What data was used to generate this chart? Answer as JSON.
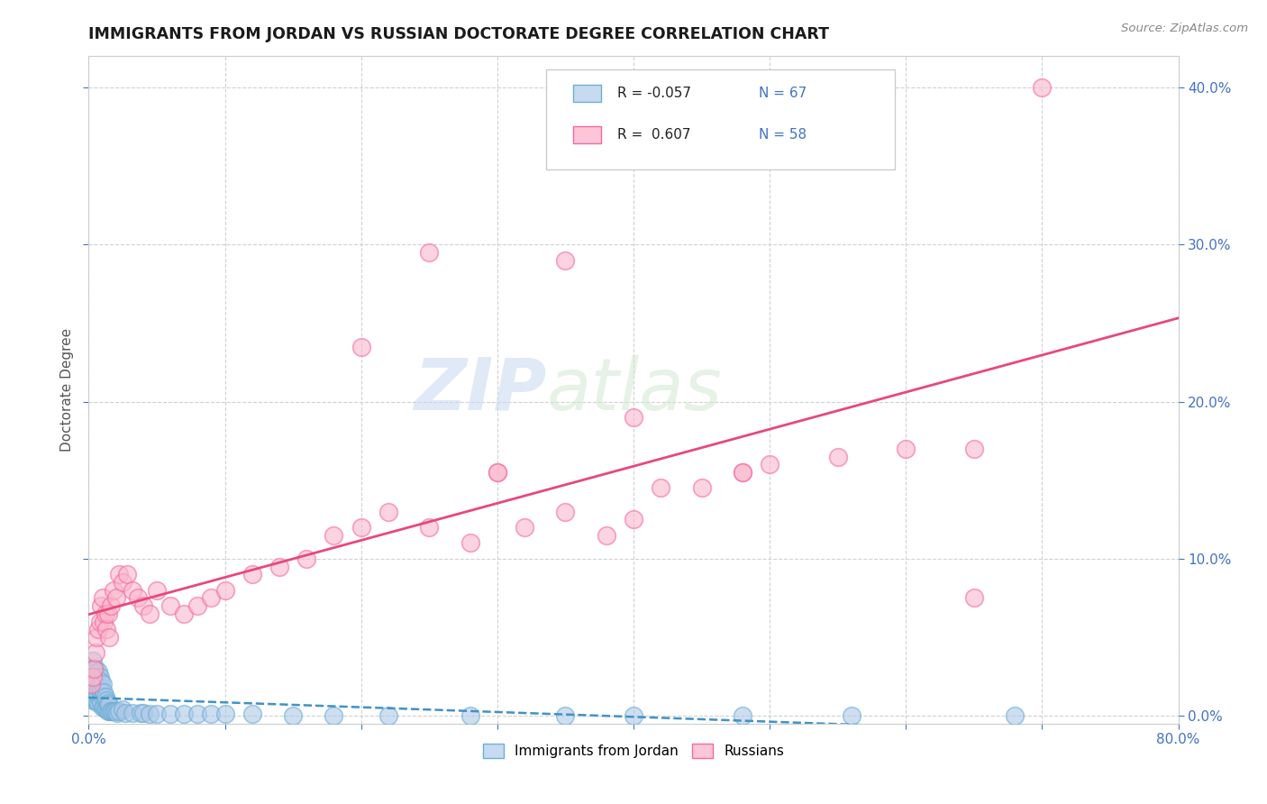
{
  "title": "IMMIGRANTS FROM JORDAN VS RUSSIAN DOCTORATE DEGREE CORRELATION CHART",
  "source": "Source: ZipAtlas.com",
  "ylabel": "Doctorate Degree",
  "legend_label1": "Immigrants from Jordan",
  "legend_label2": "Russians",
  "r1": -0.057,
  "n1": 67,
  "r2": 0.607,
  "n2": 58,
  "xlim": [
    0.0,
    0.8
  ],
  "ylim": [
    -0.005,
    0.42
  ],
  "xticks": [
    0.0,
    0.1,
    0.2,
    0.3,
    0.4,
    0.5,
    0.6,
    0.7,
    0.8
  ],
  "yticks": [
    0.0,
    0.1,
    0.2,
    0.3,
    0.4
  ],
  "color_jordan": "#aec9e8",
  "color_russian": "#f9b8cc",
  "color_jordan_edge": "#6baed6",
  "color_russian_edge": "#f768a1",
  "color_jordan_line": "#4292c6",
  "color_russian_line": "#e8487c",
  "color_legend_jordan_fill": "#c6dbef",
  "color_legend_russian_fill": "#fcc5d8",
  "watermark_zip": "ZIP",
  "watermark_atlas": "atlas",
  "title_color": "#1a1a1a",
  "axis_label_color": "#555555",
  "tick_color": "#4472c4",
  "grid_color": "#cccccc",
  "background_color": "#ffffff",
  "legend_r1_text": "R = -0.057",
  "legend_n1_text": "N = 67",
  "legend_r2_text": "R =  0.607",
  "legend_n2_text": "N = 58",
  "jordan_x": [
    0.001,
    0.001,
    0.002,
    0.002,
    0.003,
    0.003,
    0.003,
    0.004,
    0.004,
    0.004,
    0.005,
    0.005,
    0.005,
    0.006,
    0.006,
    0.006,
    0.007,
    0.007,
    0.007,
    0.008,
    0.008,
    0.008,
    0.009,
    0.009,
    0.009,
    0.01,
    0.01,
    0.01,
    0.011,
    0.011,
    0.012,
    0.012,
    0.013,
    0.013,
    0.014,
    0.014,
    0.015,
    0.015,
    0.016,
    0.017,
    0.018,
    0.019,
    0.02,
    0.021,
    0.022,
    0.025,
    0.027,
    0.032,
    0.038,
    0.04,
    0.045,
    0.05,
    0.06,
    0.07,
    0.08,
    0.09,
    0.1,
    0.12,
    0.15,
    0.18,
    0.22,
    0.28,
    0.35,
    0.4,
    0.48,
    0.56,
    0.68
  ],
  "jordan_y": [
    0.015,
    0.025,
    0.02,
    0.03,
    0.01,
    0.025,
    0.035,
    0.015,
    0.02,
    0.03,
    0.01,
    0.02,
    0.03,
    0.01,
    0.015,
    0.025,
    0.008,
    0.018,
    0.028,
    0.01,
    0.018,
    0.025,
    0.008,
    0.015,
    0.022,
    0.005,
    0.012,
    0.02,
    0.006,
    0.015,
    0.005,
    0.012,
    0.004,
    0.01,
    0.003,
    0.008,
    0.003,
    0.007,
    0.003,
    0.003,
    0.003,
    0.003,
    0.003,
    0.002,
    0.003,
    0.004,
    0.002,
    0.002,
    0.002,
    0.002,
    0.001,
    0.001,
    0.001,
    0.001,
    0.001,
    0.001,
    0.001,
    0.001,
    0.0,
    0.0,
    0.0,
    0.0,
    0.0,
    0.0,
    0.0,
    0.0,
    0.0
  ],
  "russian_x": [
    0.002,
    0.003,
    0.004,
    0.005,
    0.006,
    0.007,
    0.008,
    0.009,
    0.01,
    0.011,
    0.012,
    0.013,
    0.014,
    0.015,
    0.016,
    0.018,
    0.02,
    0.022,
    0.025,
    0.028,
    0.032,
    0.036,
    0.04,
    0.045,
    0.05,
    0.06,
    0.07,
    0.08,
    0.09,
    0.1,
    0.12,
    0.14,
    0.16,
    0.18,
    0.2,
    0.22,
    0.25,
    0.28,
    0.3,
    0.32,
    0.35,
    0.38,
    0.4,
    0.42,
    0.45,
    0.48,
    0.5,
    0.55,
    0.6,
    0.65,
    0.2,
    0.25,
    0.3,
    0.35,
    0.65,
    0.7,
    0.4,
    0.48
  ],
  "russian_y": [
    0.02,
    0.025,
    0.03,
    0.04,
    0.05,
    0.055,
    0.06,
    0.07,
    0.075,
    0.06,
    0.065,
    0.055,
    0.065,
    0.05,
    0.07,
    0.08,
    0.075,
    0.09,
    0.085,
    0.09,
    0.08,
    0.075,
    0.07,
    0.065,
    0.08,
    0.07,
    0.065,
    0.07,
    0.075,
    0.08,
    0.09,
    0.095,
    0.1,
    0.115,
    0.12,
    0.13,
    0.12,
    0.11,
    0.155,
    0.12,
    0.13,
    0.115,
    0.125,
    0.145,
    0.145,
    0.155,
    0.16,
    0.165,
    0.17,
    0.17,
    0.235,
    0.295,
    0.155,
    0.29,
    0.075,
    0.4,
    0.19,
    0.155
  ]
}
